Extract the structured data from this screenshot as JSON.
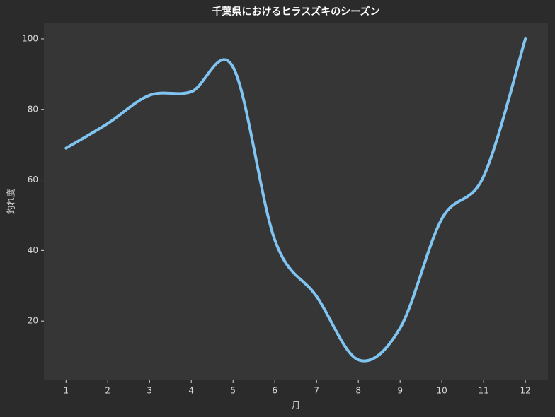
{
  "chart_data": {
    "type": "line",
    "title": "千葉県におけるヒラスズキのシーズン",
    "x_label": "月",
    "y_label": "釣れ度",
    "x": [
      1,
      2,
      3,
      4,
      5,
      6,
      7,
      8,
      9,
      10,
      11,
      12
    ],
    "series": [
      {
        "color": "#80c4f2",
        "values": [
          69,
          76,
          84,
          85,
          92,
          43,
          27,
          9,
          18,
          49,
          61,
          100
        ]
      }
    ],
    "xlim": [
      0.47,
      12.54
    ],
    "ylim": [
      3.2,
      104.6
    ],
    "xticks": [
      1,
      2,
      3,
      4,
      5,
      6,
      7,
      8,
      9,
      10,
      11,
      12
    ],
    "yticks": [
      20,
      40,
      60,
      80,
      100
    ],
    "grid": false
  }
}
